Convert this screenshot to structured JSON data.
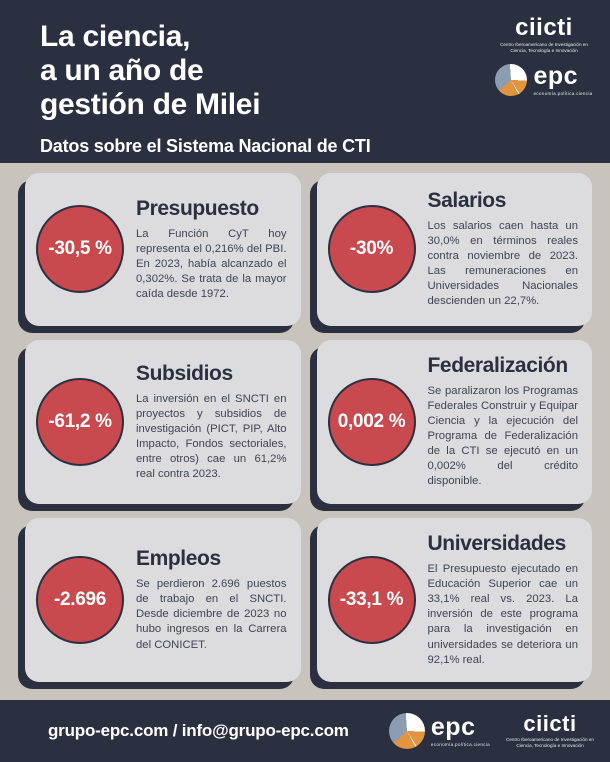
{
  "header": {
    "title_lines": [
      "La ciencia,",
      "a un año de",
      "gestión de Milei"
    ],
    "subtitle": "Datos sobre el Sistema Nacional de CTI"
  },
  "logos": {
    "ciicti": {
      "name": "ciicti",
      "tagline": "Centro Iberoamericano de Investigación en Ciencia, Tecnología e Innovación"
    },
    "epc": {
      "name": "epc",
      "tagline": "economía.política.ciencia",
      "icon": "epc-pie-icon"
    }
  },
  "cards": [
    {
      "value": "-30,5 %",
      "title": "Presupuesto",
      "body": "La Función CyT hoy representa el 0,216% del PBI. En 2023, había alcanzado el 0,302%. Se trata de la mayor caída desde 1972."
    },
    {
      "value": "-30%",
      "title": "Salarios",
      "body": "Los salarios caen hasta un 30,0% en términos reales contra noviembre de 2023. Las remuneraciones en Universidades Nacionales descienden un 22,7%."
    },
    {
      "value": "-61,2 %",
      "title": "Subsidios",
      "body": "La inversión en el SNCTI en proyectos y subsidios de investigación (PICT, PIP, Alto Impacto, Fondos sectoriales, entre otros) cae un 61,2% real contra 2023."
    },
    {
      "value": "0,002 %",
      "title": "Federalización",
      "body": "Se paralizaron los Programas Federales Construir y Equipar Ciencia y la ejecución del Programa de Federalización de la CTI se ejecutó en un 0,002% del crédito disponible."
    },
    {
      "value": "-2.696",
      "title": "Empleos",
      "body": "Se perdieron 2.696 puestos de trabajo en el SNCTI. Desde diciembre de 2023 no hubo ingresos en la Carrera del CONICET."
    },
    {
      "value": "-33,1 %",
      "title": "Universidades",
      "body": "El Presupuesto ejecutado en Educación Superior cae un 33,1% real vs. 2023. La inversión de este programa para la investigación en universidades se deteriora un 92,1% real."
    }
  ],
  "footer": {
    "contact": "grupo-epc.com / info@grupo-epc.com"
  },
  "colors": {
    "navy": "#2b3041",
    "background": "#c8c4bd",
    "card_bg": "#dcdcde",
    "accent_red": "#c94a4e",
    "pie_orange": "#e0953e",
    "pie_blue": "#8b9cb3",
    "text_body": "#3f4453",
    "white": "#ffffff"
  }
}
